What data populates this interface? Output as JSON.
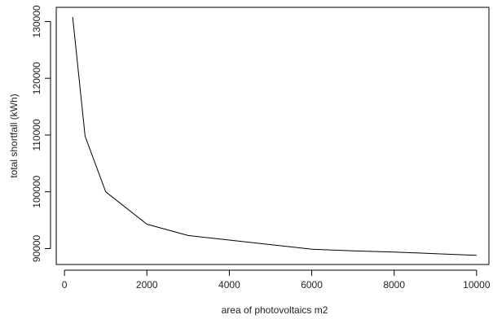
{
  "chart_data": {
    "type": "line",
    "xlabel": "area of photovoltaics m2",
    "ylabel": "total shortfall (kWh)",
    "xlim": [
      -200,
      10300
    ],
    "ylim": [
      87200,
      132500
    ],
    "x_ticks": [
      0,
      2000,
      4000,
      6000,
      8000,
      10000
    ],
    "y_ticks": [
      90000,
      100000,
      110000,
      120000,
      130000
    ],
    "series": [
      {
        "x": [
          200,
          500,
          1000,
          2000,
          3000,
          4000,
          5000,
          6000,
          7000,
          8000,
          9000,
          10000
        ],
        "y": [
          130800,
          109800,
          100000,
          94300,
          92300,
          91500,
          90700,
          89900,
          89600,
          89400,
          89100,
          88800
        ],
        "color": "#000000"
      }
    ],
    "grid": false,
    "legend": "none"
  }
}
